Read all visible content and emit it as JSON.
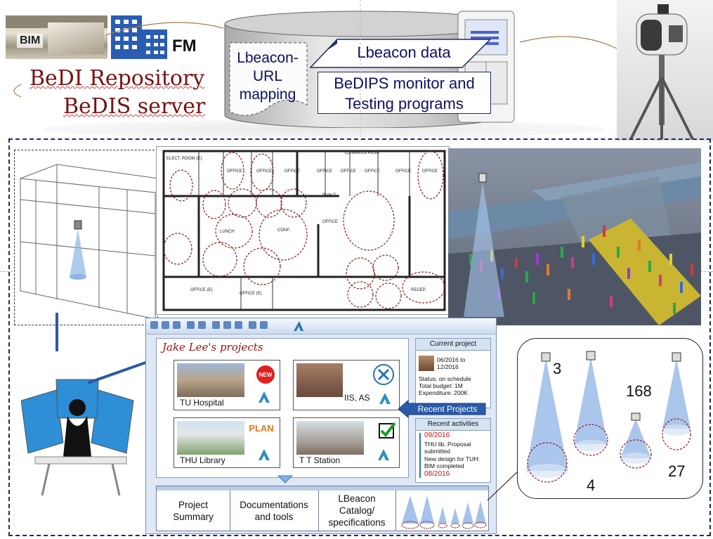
{
  "header": {
    "bim_label": "BIM",
    "fm_label": "FM",
    "repo_line1": "BeDI Repository",
    "repo_line2": "BeDIS server",
    "mapping_label_line1": "Lbeacon-",
    "mapping_label_line2": "URL",
    "mapping_label_line3": "mapping",
    "data_label": "Lbeacon data",
    "monitor_label_line1": "BeDIPS monitor and",
    "monitor_label_line2": "Testing programs"
  },
  "floorplan": {
    "rooms": [
      "ELECT. ROOM (E)",
      "OFFICE",
      "OFFICE",
      "OFFICE",
      "OFFICE",
      "OFFICE",
      "OFFICE",
      "OFFICE",
      "OFFICE",
      "LUNCH",
      "CONF.",
      "OFFICE",
      "OFFICE (E)",
      "OFFICE (E)",
      "RECEP.",
      "Conference Room",
      "Suite D"
    ]
  },
  "app": {
    "projects_title": "Jake Lee's projects",
    "cards": [
      {
        "label": "TU Hospital",
        "badge": "NEW"
      },
      {
        "label": "IIS, AS",
        "badge": ""
      },
      {
        "label": "THU Library",
        "badge": "PLAN"
      },
      {
        "label": "T T Station",
        "badge": ""
      }
    ],
    "current_project": {
      "title": "Current project",
      "dates": [
        "06/2016 to",
        "12/2016"
      ],
      "status": "Status: on schedule",
      "budget": "Total budget: 1M",
      "expenditure": "Expenditure: 200K"
    },
    "recent_button": "Recent Projects",
    "recent_activities": {
      "title": "Recent activities",
      "items": [
        "09/2016",
        "THU lib. Proposal submitted",
        "New design for TUH: BIM completed",
        "08/2016"
      ]
    },
    "bottom": {
      "summary": [
        "Project",
        "Summary"
      ],
      "docs": [
        "Documentations",
        "and tools"
      ],
      "catalog": [
        "LBeacon",
        "Catalog/",
        "specifications"
      ]
    }
  },
  "coverage": {
    "counts": [
      "3",
      "168",
      "4",
      "27"
    ]
  },
  "colors": {
    "title_red": "#7a1010",
    "navy": "#1c2b6b",
    "beam_blue": "#8fb4e6",
    "coverage_dash": "#8b1a1a"
  }
}
